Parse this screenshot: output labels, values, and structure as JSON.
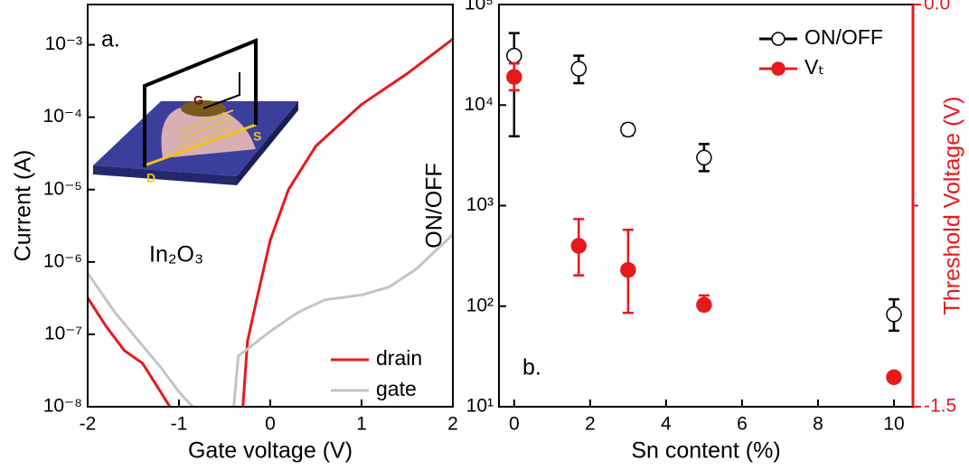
{
  "chart_data": [
    {
      "type": "line",
      "annotation": "a.",
      "material_label": "In₂O₃",
      "inset_labels": [
        "G",
        "S",
        "D"
      ],
      "xlabel": "Gate voltage (V)",
      "ylabel": "Current (A)",
      "xlim": [
        -2,
        2
      ],
      "xticks": [
        -2,
        -1,
        0,
        1,
        2
      ],
      "ylim": [
        1e-08,
        0.0036
      ],
      "ylog": true,
      "yticks": [
        {
          "value": 1e-08,
          "label": "10⁻⁸"
        },
        {
          "value": 1e-07,
          "label": "10⁻⁷"
        },
        {
          "value": 1e-06,
          "label": "10⁻⁶"
        },
        {
          "value": 1e-05,
          "label": "10⁻⁵"
        },
        {
          "value": 0.0001,
          "label": "10⁻⁴"
        },
        {
          "value": 0.001,
          "label": "10⁻³"
        }
      ],
      "legend": "lower right",
      "series": [
        {
          "name": "drain",
          "color": "#e8191c",
          "x": [
            -2,
            -1.8,
            -1.6,
            -1.4,
            -1.2,
            -1.1,
            null,
            -0.3,
            -0.25,
            -0.15,
            0,
            0.2,
            0.5,
            1,
            1.5,
            2
          ],
          "values": [
            3.2e-07,
            1.3e-07,
            6e-08,
            4e-08,
            1.6e-08,
            1e-08,
            null,
            1e-08,
            8e-08,
            3e-07,
            2e-06,
            1e-05,
            4e-05,
            0.00015,
            0.0004,
            0.0012
          ]
        },
        {
          "name": "gate",
          "color": "#c4c4c4",
          "x": [
            -2,
            -1.7,
            -1.4,
            -1.2,
            -1,
            -0.85,
            null,
            -0.4,
            -0.35,
            -0.2,
            0,
            0.3,
            0.6,
            1,
            1.3,
            1.6,
            2
          ],
          "values": [
            7e-07,
            2e-07,
            7e-08,
            3.5e-08,
            1.6e-08,
            1e-08,
            null,
            1e-08,
            5e-08,
            7e-08,
            1.1e-07,
            2e-07,
            3e-07,
            3.5e-07,
            4.5e-07,
            8e-07,
            2.4e-06
          ]
        }
      ]
    },
    {
      "type": "scatter",
      "annotation": "b.",
      "xlabel": "Sn content (%)",
      "ylabel": "ON/OFF",
      "y2label": "Threshold Voltage (V)",
      "xlim": [
        -0.4,
        10.5
      ],
      "xticks": [
        0,
        2,
        4,
        6,
        8,
        10
      ],
      "ylim": [
        10,
        100000
      ],
      "ylog": true,
      "yticks": [
        {
          "value": 10,
          "label": "10¹"
        },
        {
          "value": 100,
          "label": "10²"
        },
        {
          "value": 1000,
          "label": "10³"
        },
        {
          "value": 10000,
          "label": "10⁴"
        },
        {
          "value": 100000,
          "label": "10⁵"
        }
      ],
      "y2lim": [
        -1.5,
        0
      ],
      "y2ticks": [
        -1.5,
        {
          "value": 0,
          "label": "0.0"
        }
      ],
      "y2minor_ticks": [
        -0.75
      ],
      "y2color": "#e8191c",
      "legend": "upper right",
      "series": [
        {
          "name": "ON/OFF",
          "color": "#000000",
          "marker": "open circle",
          "x": [
            0,
            1.7,
            3,
            5,
            10
          ],
          "values": [
            31000,
            23000,
            5700,
            3000,
            83
          ],
          "err_low": [
            4900,
            16500,
            5000,
            2200,
            57
          ],
          "err_high": [
            52000,
            31000,
            6500,
            4100,
            117
          ]
        },
        {
          "name": "Vₜ",
          "color": "#e8191c",
          "marker": "filled circle",
          "axis": "y2",
          "x": [
            0,
            1.7,
            3,
            5,
            10
          ],
          "values": [
            -0.27,
            -0.9,
            -0.99,
            -1.12,
            -1.39
          ],
          "err_low": [
            -0.32,
            -1.01,
            -1.15,
            -1.14,
            null
          ],
          "err_high": [
            -0.22,
            -0.8,
            -0.84,
            -1.085,
            null
          ]
        }
      ]
    }
  ]
}
